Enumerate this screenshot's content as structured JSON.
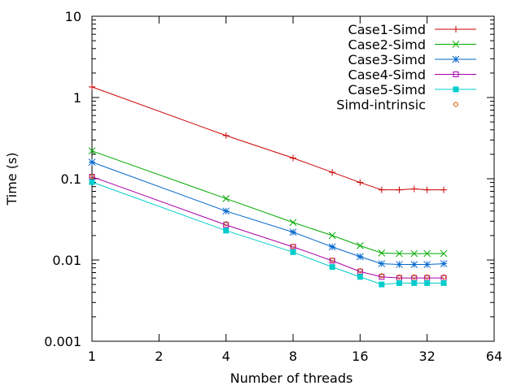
{
  "chart_data": {
    "type": "line",
    "xlabel": "Number of threads",
    "ylabel": "Time (s)",
    "xscale": "log2",
    "yscale": "log10",
    "xlim": [
      1,
      64
    ],
    "ylim": [
      0.001,
      10
    ],
    "xticks": [
      1,
      2,
      4,
      8,
      16,
      32,
      64
    ],
    "xtick_labels": [
      "1",
      "2",
      "4",
      "8",
      "16",
      "32",
      "64"
    ],
    "yticks": [
      0.001,
      0.01,
      0.1,
      1,
      10
    ],
    "ytick_labels": [
      "0.001",
      "0.01",
      "0.1",
      "1",
      "10"
    ],
    "grid": false,
    "legend_position": "top-right",
    "x": [
      1,
      4,
      8,
      12,
      16,
      20,
      24,
      28,
      32,
      38
    ],
    "series": [
      {
        "name": "Case1-Simd",
        "color": "#cc0000",
        "marker": "plus",
        "values": [
          1.35,
          0.34,
          0.18,
          0.12,
          0.09,
          0.073,
          0.073,
          0.075,
          0.073,
          0.073
        ]
      },
      {
        "name": "Case2-Simd",
        "color": "#00aa00",
        "marker": "x",
        "values": [
          0.22,
          0.057,
          0.029,
          0.02,
          0.015,
          0.0122,
          0.012,
          0.012,
          0.012,
          0.012
        ]
      },
      {
        "name": "Case3-Simd",
        "color": "#0066cc",
        "marker": "star",
        "values": [
          0.16,
          0.04,
          0.022,
          0.0145,
          0.011,
          0.009,
          0.0088,
          0.0088,
          0.0088,
          0.009
        ]
      },
      {
        "name": "Case4-Simd",
        "color": "#aa00aa",
        "marker": "square-open",
        "values": [
          0.106,
          0.027,
          0.0145,
          0.0098,
          0.0072,
          0.0062,
          0.006,
          0.006,
          0.006,
          0.006
        ]
      },
      {
        "name": "Case5-Simd",
        "color": "#00cccc",
        "marker": "square-filled",
        "values": [
          0.091,
          0.023,
          0.0125,
          0.0082,
          0.0062,
          0.005,
          0.0052,
          0.0052,
          0.0052,
          0.0052
        ]
      },
      {
        "name": "Simd-intrinsic",
        "color": "#cc5500",
        "marker": "circle-open",
        "values": [
          0.107,
          0.028,
          0.0148,
          0.01,
          0.0074,
          0.0064,
          0.0062,
          0.0062,
          0.0062,
          0.0062
        ]
      }
    ]
  }
}
